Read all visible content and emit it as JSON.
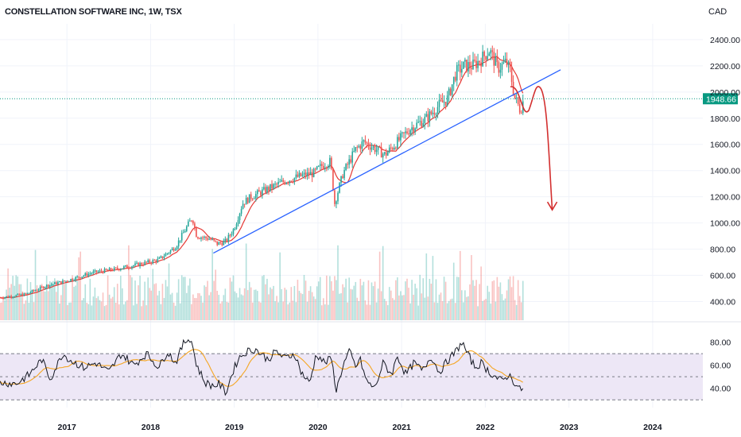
{
  "header": {
    "title": "CONSTELLATION SOFTWARE INC, 1W, TSX",
    "currency": "CAD"
  },
  "colors": {
    "up": "#26a69a",
    "down": "#ef5350",
    "ma": "#e53935",
    "trendline": "#2962ff",
    "forecast": "#d32f2f",
    "rsi": "#131722",
    "rsi_ma": "#f5a623",
    "rsi_band": "#ede7f6",
    "last_price": "#089981",
    "volume_up": "#26a69a",
    "volume_down": "#ef5350"
  },
  "chart_data": [
    {
      "type": "candlestick",
      "name": "price",
      "y_ticks": [
        "2400.00",
        "2200.00",
        "2000.00",
        "1800.00",
        "1600.00",
        "1400.00",
        "1200.00",
        "1000.00",
        "800.00",
        "600.00",
        "400.00"
      ],
      "ylim": [
        300,
        2460
      ],
      "x_ticks": [
        "2017",
        "2018",
        "2019",
        "2020",
        "2021",
        "2022",
        "2023",
        "2024"
      ],
      "xlim": [
        2016.2,
        2024.6
      ],
      "last_price": "1948.66",
      "anchors": [
        [
          2016.2,
          430
        ],
        [
          2016.5,
          455
        ],
        [
          2016.75,
          520
        ],
        [
          2017.0,
          560
        ],
        [
          2017.3,
          620
        ],
        [
          2017.6,
          650
        ],
        [
          2017.9,
          690
        ],
        [
          2018.1,
          720
        ],
        [
          2018.3,
          820
        ],
        [
          2018.45,
          990
        ],
        [
          2018.5,
          1040
        ],
        [
          2018.55,
          900
        ],
        [
          2018.7,
          880
        ],
        [
          2018.8,
          840
        ],
        [
          2018.9,
          860
        ],
        [
          2019.0,
          960
        ],
        [
          2019.1,
          1150
        ],
        [
          2019.2,
          1200
        ],
        [
          2019.4,
          1260
        ],
        [
          2019.6,
          1320
        ],
        [
          2019.8,
          1360
        ],
        [
          2019.95,
          1380
        ],
        [
          2020.05,
          1440
        ],
        [
          2020.15,
          1470
        ],
        [
          2020.2,
          1150
        ],
        [
          2020.3,
          1380
        ],
        [
          2020.45,
          1560
        ],
        [
          2020.55,
          1620
        ],
        [
          2020.7,
          1560
        ],
        [
          2020.8,
          1520
        ],
        [
          2020.95,
          1620
        ],
        [
          2021.1,
          1720
        ],
        [
          2021.3,
          1800
        ],
        [
          2021.45,
          1900
        ],
        [
          2021.55,
          1950
        ],
        [
          2021.65,
          2150
        ],
        [
          2021.75,
          2200
        ],
        [
          2021.85,
          2200
        ],
        [
          2021.95,
          2250
        ],
        [
          2022.05,
          2320
        ],
        [
          2022.15,
          2180
        ],
        [
          2022.25,
          2230
        ],
        [
          2022.3,
          2150
        ],
        [
          2022.35,
          1960
        ],
        [
          2022.42,
          1860
        ],
        [
          2022.46,
          1948.66
        ]
      ],
      "volume_max": 850
    },
    {
      "type": "line",
      "name": "rsi",
      "y_ticks": [
        "80.00",
        "60.00",
        "40.00"
      ],
      "levels": [
        70,
        50,
        30
      ],
      "ylim": [
        26,
        88
      ],
      "anchors": [
        [
          2016.2,
          45
        ],
        [
          2016.4,
          44
        ],
        [
          2016.55,
          52
        ],
        [
          2016.7,
          65
        ],
        [
          2016.8,
          48
        ],
        [
          2016.95,
          70
        ],
        [
          2017.05,
          64
        ],
        [
          2017.2,
          58
        ],
        [
          2017.35,
          62
        ],
        [
          2017.5,
          54
        ],
        [
          2017.65,
          70
        ],
        [
          2017.8,
          60
        ],
        [
          2017.95,
          70
        ],
        [
          2018.1,
          58
        ],
        [
          2018.2,
          72
        ],
        [
          2018.3,
          62
        ],
        [
          2018.4,
          80
        ],
        [
          2018.48,
          84
        ],
        [
          2018.55,
          60
        ],
        [
          2018.65,
          45
        ],
        [
          2018.75,
          42
        ],
        [
          2018.82,
          44
        ],
        [
          2018.9,
          36
        ],
        [
          2018.98,
          54
        ],
        [
          2019.05,
          66
        ],
        [
          2019.15,
          72
        ],
        [
          2019.25,
          74
        ],
        [
          2019.4,
          65
        ],
        [
          2019.5,
          72
        ],
        [
          2019.6,
          66
        ],
        [
          2019.72,
          70
        ],
        [
          2019.8,
          54
        ],
        [
          2019.9,
          44
        ],
        [
          2019.98,
          70
        ],
        [
          2020.08,
          62
        ],
        [
          2020.16,
          66
        ],
        [
          2020.22,
          38
        ],
        [
          2020.3,
          60
        ],
        [
          2020.38,
          72
        ],
        [
          2020.45,
          58
        ],
        [
          2020.5,
          66
        ],
        [
          2020.58,
          46
        ],
        [
          2020.68,
          40
        ],
        [
          2020.78,
          62
        ],
        [
          2020.88,
          52
        ],
        [
          2020.95,
          68
        ],
        [
          2021.05,
          52
        ],
        [
          2021.15,
          62
        ],
        [
          2021.25,
          55
        ],
        [
          2021.35,
          68
        ],
        [
          2021.45,
          54
        ],
        [
          2021.55,
          64
        ],
        [
          2021.65,
          72
        ],
        [
          2021.72,
          80
        ],
        [
          2021.8,
          68
        ],
        [
          2021.88,
          58
        ],
        [
          2021.95,
          62
        ],
        [
          2022.05,
          54
        ],
        [
          2022.12,
          50
        ],
        [
          2022.2,
          46
        ],
        [
          2022.28,
          52
        ],
        [
          2022.35,
          45
        ],
        [
          2022.42,
          38
        ],
        [
          2022.46,
          42
        ]
      ]
    }
  ]
}
